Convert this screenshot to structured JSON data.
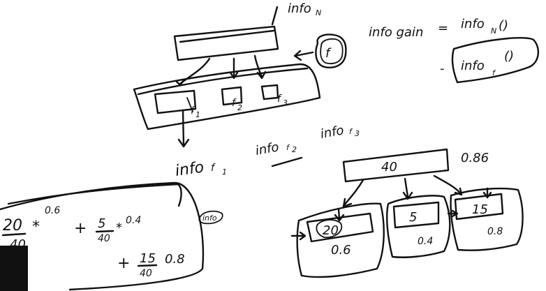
{
  "top": {
    "info_n_label": "info",
    "info_n_sub": "N"
  },
  "formula": {
    "lhs": "info gain",
    "eq": "=",
    "term1": "info",
    "term1_sub": "N",
    "term1_paren": "()",
    "minus": "-",
    "term2": "info",
    "term2_sub": "f",
    "term2_paren": "()"
  },
  "feature_node": {
    "label": "f"
  },
  "children": [
    {
      "label": "f",
      "sub": "1"
    },
    {
      "label": "f",
      "sub": "2"
    },
    {
      "label": "f",
      "sub": "3"
    }
  ],
  "info_labels": [
    {
      "label": "info",
      "sub": "f",
      "subsub": "1"
    },
    {
      "label": "info",
      "sub": "f",
      "subsub": "2"
    },
    {
      "label": "info",
      "sub": "f",
      "subsub": "3"
    }
  ],
  "calc": {
    "t1_num": "20",
    "t1_den": "40",
    "t1_op": "*",
    "t1_val": "0.6",
    "t2_plus": "+",
    "t2_num": "5",
    "t2_den": "40",
    "t2_op": "*",
    "t2_val": "0.4",
    "t3_plus": "+",
    "t3_num": "15",
    "t3_den": "40",
    "t3_val": "0.8",
    "side_note": "info"
  },
  "tree": {
    "root_value": "40",
    "root_score": "0.86",
    "leaves": [
      {
        "value": "20",
        "score": "0.6"
      },
      {
        "value": "5",
        "score": "0.4"
      },
      {
        "value": "15",
        "score": "0.8"
      }
    ]
  }
}
